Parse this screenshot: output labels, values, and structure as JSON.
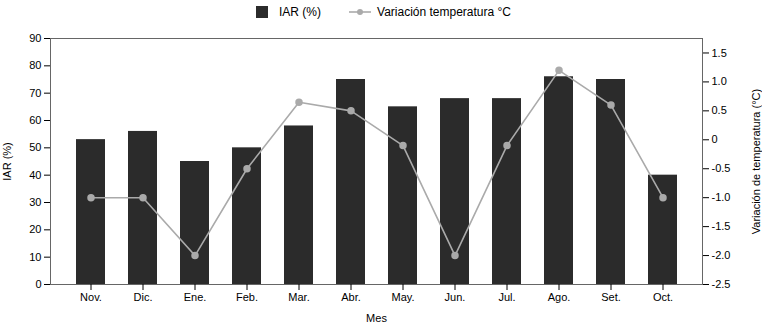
{
  "chart_data": {
    "type": "bar",
    "xlabel": "Mes",
    "ylabel": "IAR (%)",
    "y2label": "Variación de temperatura (°C)",
    "categories": [
      "Nov.",
      "Dic.",
      "Ene.",
      "Feb.",
      "Mar.",
      "Abr.",
      "May.",
      "Jun.",
      "Jul.",
      "Ago.",
      "Set.",
      "Oct."
    ],
    "series": [
      {
        "name": "IAR (%)",
        "type": "bar",
        "color": "#2b2b2b",
        "values": [
          53,
          56,
          45,
          50,
          58,
          75,
          65,
          68,
          68,
          76,
          75,
          40
        ]
      },
      {
        "name": "Variación temperatura °C",
        "type": "line",
        "axis": "y2",
        "color": "#aaaaaa",
        "marker": "circle",
        "values": [
          -1.0,
          -1.0,
          -2.0,
          -0.5,
          0.65,
          0.5,
          -0.1,
          -2.0,
          -0.1,
          1.2,
          0.6,
          -1.0
        ]
      }
    ],
    "ylim": [
      0,
      90
    ],
    "yticks": [
      0,
      10,
      20,
      30,
      40,
      50,
      60,
      70,
      80,
      90
    ],
    "y2lim": [
      -2.5,
      1.75
    ],
    "y2ticks": [
      -2.5,
      {
        "value": -2.0,
        "label": "-2.0"
      },
      -1.5,
      {
        "value": -1.0,
        "label": "-1.0"
      },
      -0.5,
      0,
      0.5,
      {
        "value": 1.0,
        "label": "1.0"
      },
      1.5
    ],
    "legend": "top"
  }
}
